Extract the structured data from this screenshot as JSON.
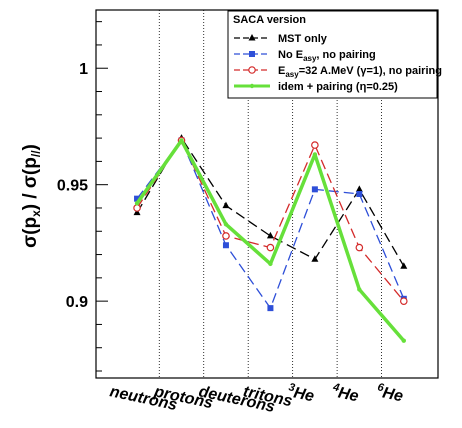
{
  "chart_data": {
    "type": "line",
    "ylabel_parts": [
      "σ(p",
      "x",
      ") / σ(p",
      "//",
      ")"
    ],
    "categories": [
      "neutrons",
      "protons",
      "deuterons",
      "tritons",
      "3He",
      "4He",
      "6He"
    ],
    "category_labels": [
      {
        "sup": "",
        "text": "neutrons"
      },
      {
        "sup": "",
        "text": "protons"
      },
      {
        "sup": "",
        "text": "deuterons"
      },
      {
        "sup": "",
        "text": "tritons"
      },
      {
        "sup": "3",
        "text": "He"
      },
      {
        "sup": "4",
        "text": "He"
      },
      {
        "sup": "6",
        "text": "He"
      }
    ],
    "ylim": [
      0.867,
      1.025
    ],
    "yticks": [
      0.9,
      0.95,
      1
    ],
    "ytick_labels": [
      "0.9",
      "0.95",
      "1"
    ],
    "legend_title": "SACA version",
    "legend_placement": "top-right",
    "series": [
      {
        "name_parts": [
          "MST only",
          "",
          ""
        ],
        "color": "#000000",
        "dash": "10,5",
        "marker": "triangle",
        "width": 1.3,
        "values": [
          0.938,
          0.97,
          0.941,
          0.928,
          0.918,
          0.948,
          0.915
        ]
      },
      {
        "name_parts": [
          "No E",
          "asy",
          ", no pairing"
        ],
        "color": "#2e4fd8",
        "dash": "10,5",
        "marker": "square",
        "width": 1.3,
        "values": [
          0.944,
          0.969,
          0.924,
          0.897,
          0.948,
          0.946,
          0.901
        ]
      },
      {
        "name_parts": [
          "E",
          "asy",
          "=32 A.MeV (γ=1), no pairing"
        ],
        "color": "#d42b2b",
        "dash": "10,5",
        "marker": "circle",
        "width": 1.3,
        "values": [
          0.94,
          0.969,
          0.928,
          0.923,
          0.967,
          0.923,
          0.9
        ]
      },
      {
        "name_parts": [
          "idem + pairing (η=0.25)",
          "",
          ""
        ],
        "color": "#66e03a",
        "dash": "",
        "marker": "dot",
        "width": 3.5,
        "values": [
          0.942,
          0.969,
          0.933,
          0.916,
          0.963,
          0.905,
          0.883
        ]
      }
    ]
  }
}
